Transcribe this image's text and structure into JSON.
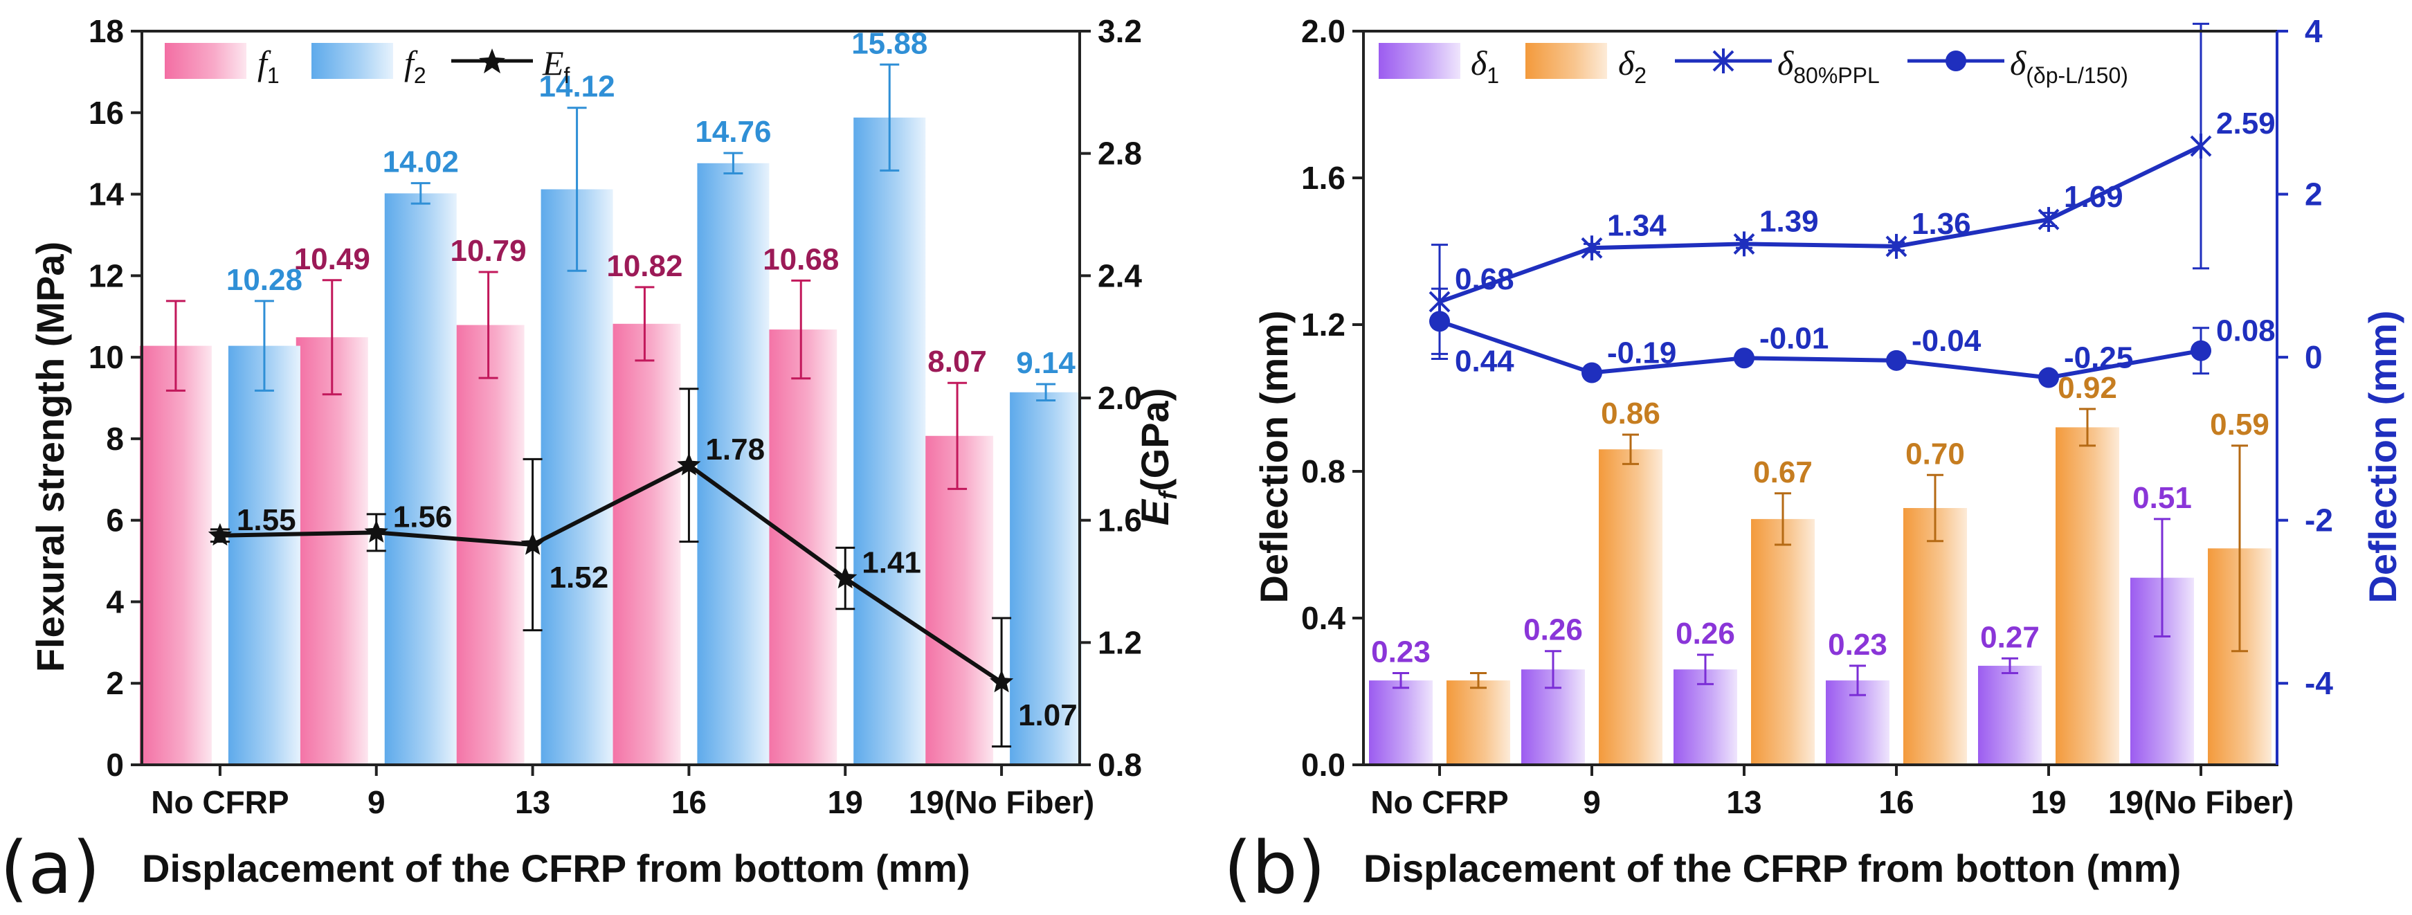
{
  "chart_data": [
    {
      "type": "bar",
      "panel_label": "(a)",
      "xlabel": "Displacement of the CFRP from bottom (mm)",
      "ylabel": "Flexural strength (MPa)",
      "y2label_main": "E",
      "y2label_sub": "f",
      "y2label_unit": "(GPa)",
      "categories": [
        "No CFRP",
        "9",
        "13",
        "16",
        "19",
        "19(No Fiber)"
      ],
      "ylim": [
        0,
        18
      ],
      "y_ticks": [
        0,
        2,
        4,
        6,
        8,
        10,
        12,
        14,
        16,
        18
      ],
      "y2lim": [
        0.8,
        3.2
      ],
      "y2_ticks": [
        0.8,
        1.2,
        1.6,
        2.0,
        2.4,
        2.8,
        3.2
      ],
      "y_tick_labels": [
        "0",
        "2",
        "4",
        "6",
        "8",
        "10",
        "12",
        "14",
        "16",
        "18"
      ],
      "y2_tick_labels": [
        "0.8",
        "1.2",
        "1.6",
        "2.0",
        "2.4",
        "2.8",
        "3.2"
      ],
      "series": [
        {
          "name": "f",
          "sub": "1",
          "kind": "bar",
          "axis": "left",
          "color": "#f06fa0",
          "values": [
            10.28,
            10.49,
            10.79,
            10.82,
            10.68,
            8.07
          ],
          "errors": [
            1.1,
            1.4,
            1.3,
            0.9,
            1.2,
            1.3
          ],
          "labels": [
            "",
            "10.49",
            "10.79",
            "10.82",
            "10.68",
            "8.07"
          ],
          "label_color": "#9c1a57"
        },
        {
          "name": "f",
          "sub": "2",
          "kind": "bar",
          "axis": "left",
          "color": "#6eb3ec",
          "values": [
            10.28,
            14.02,
            14.12,
            14.76,
            15.88,
            9.14
          ],
          "errors": [
            1.1,
            0.25,
            2.0,
            0.25,
            1.3,
            0.2
          ],
          "labels": [
            "10.28",
            "14.02",
            "14.12",
            "14.76",
            "15.88",
            "9.14"
          ],
          "label_color": "#2f8fd6"
        },
        {
          "name": "E",
          "sub": "f",
          "kind": "line",
          "axis": "right",
          "color": "#111111",
          "values": [
            1.55,
            1.56,
            1.52,
            1.78,
            1.41,
            1.07
          ],
          "errors": [
            0.02,
            0.06,
            0.28,
            0.25,
            0.1,
            0.21
          ],
          "labels": [
            "1.55",
            "1.56",
            "1.52",
            "1.78",
            "1.41",
            "1.07"
          ],
          "label_color": "#111111"
        }
      ]
    },
    {
      "type": "bar",
      "panel_label": "(b)",
      "xlabel": "Displacement of the CFRP from botton (mm)",
      "ylabel": "Deflection (mm)",
      "y2label": "Deflection (mm)",
      "categories": [
        "No CFRP",
        "9",
        "13",
        "16",
        "19",
        "19(No Fiber)"
      ],
      "ylim": [
        0,
        2.0
      ],
      "y_ticks": [
        0,
        0.4,
        0.8,
        1.2,
        1.6,
        2.0
      ],
      "y_tick_labels": [
        "0.0",
        "0.4",
        "0.8",
        "1.2",
        "1.6",
        "2.0"
      ],
      "y2lim": [
        -5,
        4
      ],
      "y2_ticks": [
        -4,
        -2,
        0,
        2,
        4
      ],
      "y2_tick_labels": [
        "-4",
        "-2",
        "0",
        "2",
        "4"
      ],
      "series": [
        {
          "name": "δ",
          "sub": "1",
          "kind": "bar",
          "axis": "left",
          "color": "#a46cf0",
          "values": [
            0.23,
            0.26,
            0.26,
            0.23,
            0.27,
            0.51
          ],
          "errors": [
            0.02,
            0.05,
            0.04,
            0.04,
            0.02,
            0.16
          ],
          "labels": [
            "0.23",
            "0.26",
            "0.26",
            "0.23",
            "0.27",
            "0.51"
          ],
          "label_color": "#8a35d8"
        },
        {
          "name": "δ",
          "sub": "2",
          "kind": "bar",
          "axis": "left",
          "color": "#f5a24a",
          "values": [
            0.23,
            0.86,
            0.67,
            0.7,
            0.92,
            0.59
          ],
          "errors": [
            0.02,
            0.04,
            0.07,
            0.09,
            0.05,
            0.28
          ],
          "labels": [
            "",
            "0.86",
            "0.67",
            "0.70",
            "0.92",
            "0.59"
          ],
          "label_color": "#c67d20"
        },
        {
          "name": "δ",
          "sub": "80%PPL",
          "kind": "line",
          "axis": "right",
          "marker": "star",
          "color": "#1f2fbe",
          "values": [
            0.68,
            1.34,
            1.39,
            1.36,
            1.69,
            2.59
          ],
          "errors": [
            0.7,
            0.05,
            0.05,
            0.05,
            0.08,
            1.5
          ],
          "labels": [
            "0.68",
            "1.34",
            "1.39",
            "1.36",
            "1.69",
            "2.59"
          ],
          "label_color": "#1f2fbe"
        },
        {
          "name": "δ",
          "sub": "(δp-L/150)",
          "kind": "line",
          "axis": "right",
          "marker": "circle",
          "color": "#1f2fbe",
          "values": [
            0.44,
            -0.19,
            -0.01,
            -0.04,
            -0.25,
            0.08
          ],
          "errors": [
            0.4,
            0.04,
            0.04,
            0.04,
            0.04,
            0.28
          ],
          "labels": [
            "0.44",
            "-0.19",
            "-0.01",
            "-0.04",
            "-0.25",
            "0.08"
          ],
          "label_color": "#1f2fbe"
        }
      ]
    }
  ]
}
